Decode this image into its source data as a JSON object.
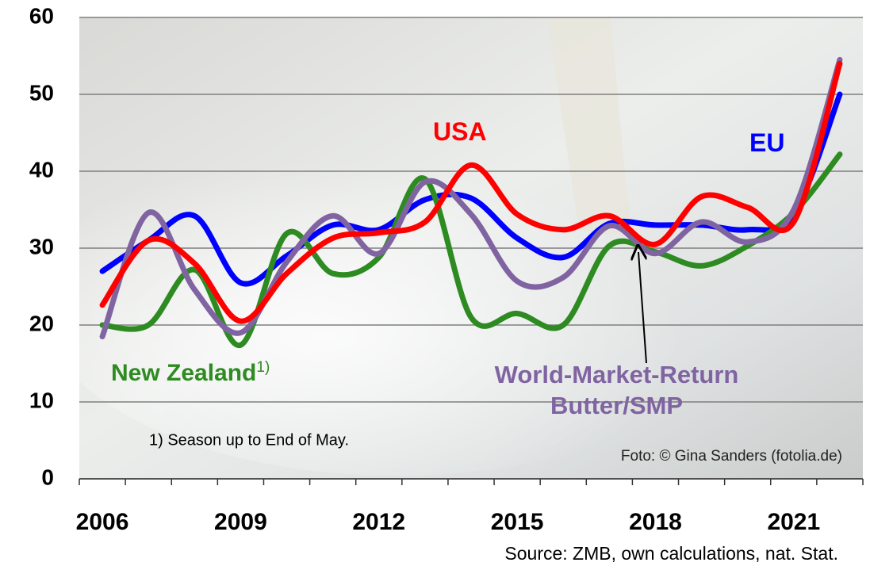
{
  "chart_data": {
    "type": "line",
    "categories": [
      "2006",
      null,
      null,
      "2009",
      null,
      null,
      "2012",
      null,
      null,
      "2015",
      null,
      null,
      "2018",
      null,
      null,
      "2021",
      null
    ],
    "ylim": [
      0,
      60
    ],
    "yticks": [
      0,
      10,
      20,
      30,
      40,
      50,
      60
    ],
    "grid": true,
    "series": [
      {
        "name": "EU",
        "color": "#0000ff",
        "values": [
          27,
          31,
          34.2,
          25.5,
          29,
          33,
          32.4,
          36.3,
          36.5,
          31.3,
          28.8,
          33.2,
          33,
          33,
          32.4,
          34.4,
          50
        ]
      },
      {
        "name": "New Zealand",
        "color": "#2e8b22",
        "values": [
          20,
          20,
          27.2,
          17.4,
          31.9,
          26.7,
          28.8,
          39,
          21,
          21.5,
          20,
          30.3,
          29.5,
          27.7,
          30.3,
          34.6,
          42.2
        ]
      },
      {
        "name": "World-Market-Return Butter/SMP",
        "color": "#8064a2",
        "values": [
          18.5,
          34.6,
          24.6,
          19,
          28.2,
          34.2,
          29.3,
          38.6,
          34.4,
          25.7,
          26.2,
          32.9,
          29.3,
          33.4,
          30.8,
          35,
          54.5
        ]
      },
      {
        "name": "USA",
        "color": "#ff0000",
        "values": [
          22.6,
          31,
          28,
          20.5,
          26.7,
          31.3,
          32,
          33.4,
          40.8,
          34.4,
          32.4,
          34.2,
          30.5,
          36.7,
          35.3,
          33.4,
          54
        ]
      }
    ],
    "annotations": {
      "nz_marker": "1)",
      "footnote": "1) Season up to End of May.",
      "photo_credit": "Foto: © Gina Sanders (fotolia.de)",
      "source": "Source: ZMB, own calculations, nat. Stat."
    }
  }
}
